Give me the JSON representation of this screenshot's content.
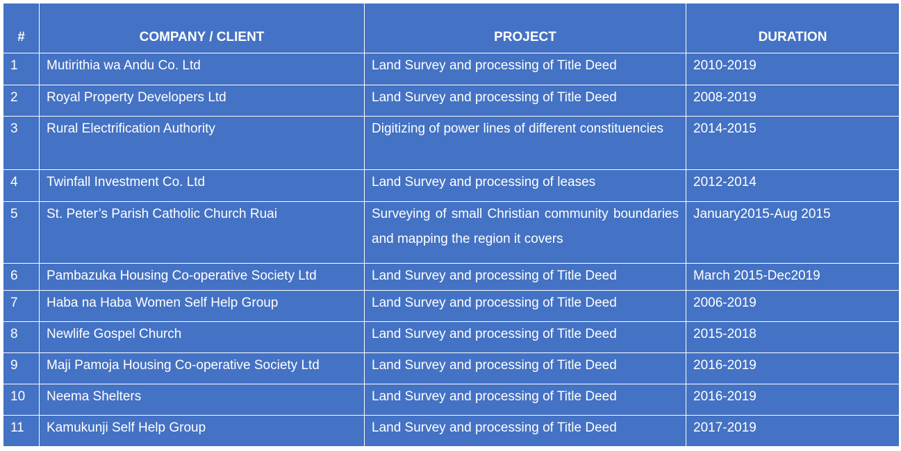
{
  "table": {
    "headers": {
      "num": "#",
      "client": "COMPANY / CLIENT",
      "project": "PROJECT",
      "duration": "DURATION"
    },
    "rows": [
      {
        "num": "1",
        "client": "Mutirithia wa Andu Co. Ltd",
        "project": "Land Survey and processing of Title Deed",
        "duration": "2010-2019"
      },
      {
        "num": "2",
        "client": "Royal Property Developers Ltd",
        "project": "Land Survey and processing of Title Deed",
        "duration": "2008-2019"
      },
      {
        "num": "3",
        "client": "Rural Electrification Authority",
        "project": "Digitizing of power lines of different constituencies",
        "duration": "2014-2015"
      },
      {
        "num": "4",
        "client": "Twinfall Investment Co. Ltd",
        "project": "Land Survey and processing of leases",
        "duration": "2012-2014"
      },
      {
        "num": "5",
        "client": "St. Peter’s Parish Catholic Church Ruai",
        "project": "Surveying of small Christian community boundaries and mapping the region it covers",
        "duration": "January2015-Aug 2015"
      },
      {
        "num": "6",
        "client": "Pambazuka Housing Co-operative Society Ltd",
        "project": "Land Survey and processing of Title Deed",
        "duration": "March 2015-Dec2019"
      },
      {
        "num": "7",
        "client": "Haba na Haba Women Self Help  Group",
        "project": "Land Survey and processing of Title Deed",
        "duration": "2006-2019"
      },
      {
        "num": "8",
        "client": "Newlife Gospel Church",
        "project": "Land Survey and processing of Title Deed",
        "duration": "2015-2018"
      },
      {
        "num": "9",
        "client": "Maji Pamoja Housing Co-operative Society Ltd",
        "project": "Land Survey and processing of Title Deed",
        "duration": "2016-2019"
      },
      {
        "num": "10",
        "client": "Neema Shelters",
        "project": "Land Survey and processing of Title Deed",
        "duration": "2016-2019"
      },
      {
        "num": "11",
        "client": "Kamukunji Self Help Group",
        "project": "Land Survey and processing of Title Deed",
        "duration": "2017-2019"
      }
    ]
  }
}
